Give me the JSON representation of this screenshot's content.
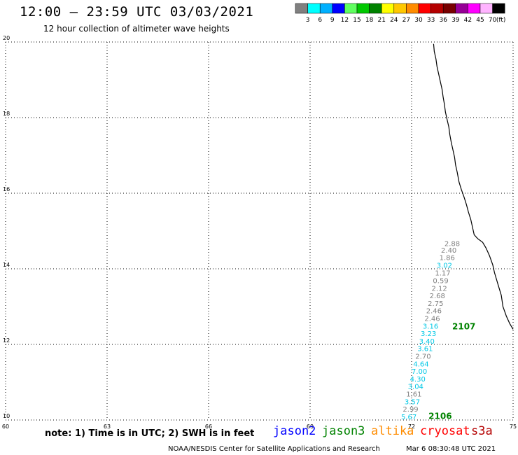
{
  "header": {
    "title": "12:00 – 23:59 UTC 03/03/2021",
    "subtitle": "12 hour collection of altimeter wave heights"
  },
  "colorbar": {
    "unit": "(ft)",
    "labels": [
      "3",
      "6",
      "9",
      "12",
      "15",
      "18",
      "21",
      "24",
      "27",
      "30",
      "33",
      "36",
      "39",
      "42",
      "45",
      "70"
    ],
    "colors": [
      "#808080",
      "#00ffff",
      "#00b0ff",
      "#0000ff",
      "#60ff60",
      "#00c800",
      "#008200",
      "#ffff00",
      "#ffc800",
      "#ff8c00",
      "#ff0000",
      "#b40000",
      "#780000",
      "#960096",
      "#ff00ff",
      "#ffb4ff",
      "#000000"
    ]
  },
  "note": "note:  1) Time is in UTC;  2) SWH is in feet",
  "satellites": [
    {
      "name": "jason2",
      "color": "#0000ff"
    },
    {
      "name": "jason3",
      "color": "#008200"
    },
    {
      "name": "altika",
      "color": "#ff8c00"
    },
    {
      "name": "cryosat",
      "color": "#ff0000"
    },
    {
      "name": "s3a",
      "color": "#b40000"
    }
  ],
  "footer": {
    "org": "NOAA/NESDIS Center for Satellite Applications and Research",
    "timestamp": "Mar  6 08:30:48 UTC 2021"
  },
  "chart_data": {
    "type": "scatter",
    "xlim": [
      60,
      75
    ],
    "ylim": [
      10,
      20
    ],
    "x_ticks": [
      "60",
      "63",
      "66",
      "69",
      "72",
      "75"
    ],
    "y_ticks": [
      "10",
      "12",
      "14",
      "16",
      "18",
      "20"
    ],
    "grid": true,
    "tracks": [
      {
        "label": "2107",
        "color": "#008200",
        "x": 73.2,
        "y": 12.4
      },
      {
        "label": "2106",
        "color": "#008200",
        "x": 72.5,
        "y": 10.03
      }
    ],
    "points": [
      {
        "x": 73.2,
        "y": 14.6,
        "v": "2.88",
        "color": "#808080"
      },
      {
        "x": 73.1,
        "y": 14.43,
        "v": "2.40",
        "color": "#808080"
      },
      {
        "x": 73.05,
        "y": 14.23,
        "v": "1.86",
        "color": "#808080"
      },
      {
        "x": 72.97,
        "y": 14.03,
        "v": "3.02",
        "color": "#00c8e6"
      },
      {
        "x": 72.92,
        "y": 13.82,
        "v": "1.17",
        "color": "#808080"
      },
      {
        "x": 72.86,
        "y": 13.62,
        "v": "0.59",
        "color": "#808080"
      },
      {
        "x": 72.82,
        "y": 13.42,
        "v": "2.12",
        "color": "#808080"
      },
      {
        "x": 72.76,
        "y": 13.22,
        "v": "2.68",
        "color": "#808080"
      },
      {
        "x": 72.71,
        "y": 13.02,
        "v": "2.75",
        "color": "#808080"
      },
      {
        "x": 72.66,
        "y": 12.82,
        "v": "2.46",
        "color": "#808080"
      },
      {
        "x": 72.61,
        "y": 12.62,
        "v": "2.46",
        "color": "#808080"
      },
      {
        "x": 72.56,
        "y": 12.42,
        "v": "3.16",
        "color": "#00c8e6"
      },
      {
        "x": 72.5,
        "y": 12.22,
        "v": "3.23",
        "color": "#00c8e6"
      },
      {
        "x": 72.45,
        "y": 12.02,
        "v": "3.40",
        "color": "#00c8e6"
      },
      {
        "x": 72.4,
        "y": 11.82,
        "v": "3.61",
        "color": "#00c8e6"
      },
      {
        "x": 72.34,
        "y": 11.62,
        "v": "2.70",
        "color": "#808080"
      },
      {
        "x": 72.28,
        "y": 11.42,
        "v": "4.64",
        "color": "#00c8e6"
      },
      {
        "x": 72.23,
        "y": 11.22,
        "v": "7.00",
        "color": "#00c8e6"
      },
      {
        "x": 72.18,
        "y": 11.02,
        "v": "4.30",
        "color": "#00c8e6"
      },
      {
        "x": 72.12,
        "y": 10.82,
        "v": "3.04",
        "color": "#00c8e6"
      },
      {
        "x": 72.07,
        "y": 10.62,
        "v": "1.61",
        "color": "#808080"
      },
      {
        "x": 72.02,
        "y": 10.42,
        "v": "3.57",
        "color": "#00c8e6"
      },
      {
        "x": 71.97,
        "y": 10.22,
        "v": "2.99",
        "color": "#808080"
      },
      {
        "x": 71.92,
        "y": 10.02,
        "v": "5.67",
        "color": "#00c8e6"
      }
    ],
    "coastline": [
      [
        72.65,
        19.95
      ],
      [
        72.67,
        19.75
      ],
      [
        72.72,
        19.55
      ],
      [
        72.75,
        19.35
      ],
      [
        72.8,
        19.15
      ],
      [
        72.85,
        18.95
      ],
      [
        72.9,
        18.75
      ],
      [
        72.93,
        18.55
      ],
      [
        72.97,
        18.35
      ],
      [
        73.0,
        18.15
      ],
      [
        73.05,
        17.95
      ],
      [
        73.1,
        17.75
      ],
      [
        73.13,
        17.55
      ],
      [
        73.17,
        17.35
      ],
      [
        73.22,
        17.15
      ],
      [
        73.27,
        16.95
      ],
      [
        73.3,
        16.75
      ],
      [
        73.35,
        16.55
      ],
      [
        73.4,
        16.3
      ],
      [
        73.47,
        16.1
      ],
      [
        73.55,
        15.9
      ],
      [
        73.62,
        15.7
      ],
      [
        73.68,
        15.5
      ],
      [
        73.75,
        15.3
      ],
      [
        73.8,
        15.1
      ],
      [
        73.85,
        14.9
      ],
      [
        73.95,
        14.8
      ],
      [
        74.1,
        14.7
      ],
      [
        74.2,
        14.55
      ],
      [
        74.3,
        14.35
      ],
      [
        74.4,
        14.1
      ],
      [
        74.45,
        13.9
      ],
      [
        74.55,
        13.6
      ],
      [
        74.65,
        13.3
      ],
      [
        74.7,
        13.0
      ],
      [
        74.8,
        12.75
      ],
      [
        74.9,
        12.55
      ],
      [
        75.0,
        12.4
      ]
    ]
  }
}
